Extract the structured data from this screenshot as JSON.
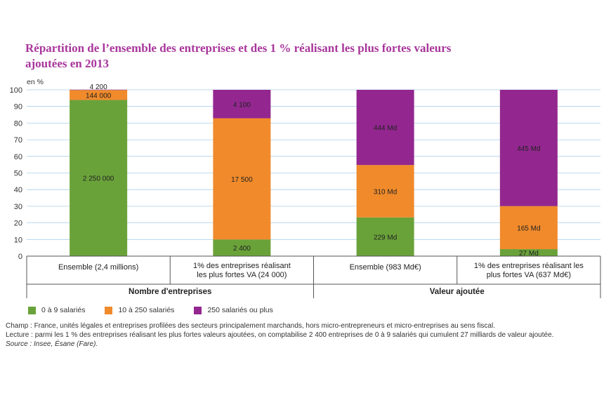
{
  "title": {
    "line1": "Répartition de l’ensemble des entreprises et des 1 % réalisant les plus fortes valeurs",
    "line2": "ajoutées en 2013"
  },
  "chart_data": {
    "type": "bar",
    "stacked": true,
    "yunit": "en %",
    "ylim": [
      0,
      100
    ],
    "yticks": [
      0,
      10,
      20,
      30,
      40,
      50,
      60,
      70,
      80,
      90,
      100
    ],
    "grid": true,
    "categories": [
      "Ensemble (2,4 millions)",
      "1% des entreprises réalisant les plus fortes VA (24 000)",
      "Ensemble (983 Md€)",
      "1% des entreprises réalisant les plus fortes VA (637 Md€)"
    ],
    "category_lines": [
      [
        "Ensemble (2,4 millions)"
      ],
      [
        "1% des entreprises réalisant",
        "les plus fortes VA (24 000)"
      ],
      [
        "Ensemble (983 Md€)"
      ],
      [
        "1% des entreprises réalisant les",
        "plus fortes VA (637 Md€)"
      ]
    ],
    "groups": [
      {
        "label": "Nombre d'entreprises",
        "categories": [
          0,
          1
        ]
      },
      {
        "label": "Valeur ajoutée",
        "categories": [
          2,
          3
        ]
      }
    ],
    "series": [
      {
        "name": "0 à 9 salariés",
        "color": "#6aa23a",
        "values": [
          93.9,
          10.0,
          23.3,
          4.2
        ],
        "labels": [
          "2 250 000",
          "2 400",
          "229 Md",
          "27 Md"
        ]
      },
      {
        "name": "10 à 250 salariés",
        "color": "#f08a2b",
        "values": [
          6.0,
          72.9,
          31.5,
          25.9
        ],
        "labels": [
          "144 000",
          "17 500",
          "310 Md",
          "165 Md"
        ]
      },
      {
        "name": "250 salariés ou plus",
        "color": "#93278f",
        "values": [
          0.2,
          17.1,
          45.2,
          69.9
        ],
        "labels": [
          "4 200",
          "4 100",
          "444 Md",
          "445 Md"
        ]
      }
    ]
  },
  "notes": {
    "champ": "Champ : France, unités légales et entreprises profilées des secteurs principalement marchands, hors micro-entrepreneurs et micro-entreprises au sens fiscal.",
    "lecture": "Lecture : parmi les 1 % des entreprises réalisant les plus fortes valeurs ajoutées, on comptabilise 2 400 entreprises de 0 à 9 salariés qui cumulent 27 milliards de valeur ajoutée.",
    "source": "Source : Insee, Ésane (Fare)."
  }
}
